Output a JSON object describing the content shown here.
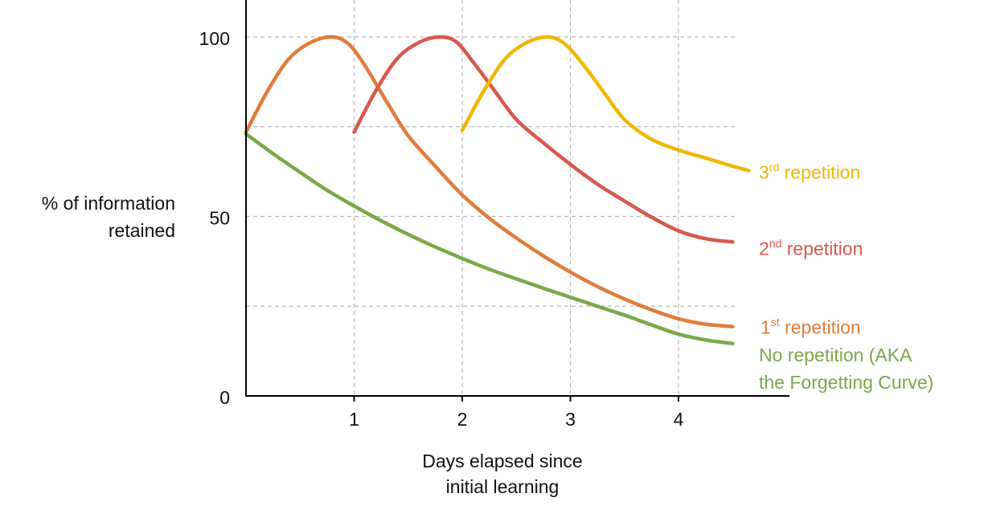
{
  "chart_data": {
    "type": "line",
    "xlabel": [
      "Days elapsed since",
      "initial learning"
    ],
    "ylabel": [
      "% of information",
      "retained"
    ],
    "xlim": [
      0,
      5
    ],
    "ylim": [
      0,
      100
    ],
    "x_ticks": [
      1,
      2,
      3,
      4
    ],
    "y_ticks": [
      0,
      50,
      100
    ],
    "y_gridlines": [
      25,
      50,
      75,
      100
    ],
    "x_gridlines": [
      1,
      2,
      3,
      4
    ],
    "grid": true,
    "series": [
      {
        "name": "No repetition (AKA the Forgetting Curve)",
        "label_lines": [
          "No repetition (AKA",
          "the Forgetting Curve)"
        ],
        "color": "#7aa84a",
        "points": [
          [
            0,
            73
          ],
          [
            0.25,
            67.5
          ],
          [
            0.5,
            62.3
          ],
          [
            0.75,
            57.3
          ],
          [
            1,
            52.9
          ],
          [
            1.25,
            48.8
          ],
          [
            1.5,
            45
          ],
          [
            1.75,
            41.5
          ],
          [
            2,
            38.3
          ],
          [
            2.25,
            35.3
          ],
          [
            2.5,
            32.6
          ],
          [
            2.75,
            30
          ],
          [
            3,
            27.5
          ],
          [
            3.25,
            25
          ],
          [
            3.5,
            22.5
          ],
          [
            3.75,
            19.8
          ],
          [
            4,
            17.2
          ],
          [
            4.25,
            15.6
          ],
          [
            4.5,
            14.6
          ]
        ]
      },
      {
        "name": "1st repetition",
        "label_main": "1",
        "label_sup": "st",
        "label_rest": " repetition",
        "color": "#e07c3a",
        "points": [
          [
            0,
            73.5
          ],
          [
            0.2,
            85
          ],
          [
            0.4,
            94
          ],
          [
            0.6,
            98.5
          ],
          [
            0.8,
            100
          ],
          [
            0.95,
            98
          ],
          [
            1.1,
            92
          ],
          [
            1.3,
            82
          ],
          [
            1.5,
            72.5
          ],
          [
            1.75,
            64
          ],
          [
            2,
            56
          ],
          [
            2.25,
            49.5
          ],
          [
            2.5,
            44
          ],
          [
            2.75,
            39
          ],
          [
            3,
            34.5
          ],
          [
            3.25,
            30.5
          ],
          [
            3.5,
            27
          ],
          [
            3.75,
            24
          ],
          [
            4,
            21.5
          ],
          [
            4.25,
            20
          ],
          [
            4.5,
            19.3
          ]
        ]
      },
      {
        "name": "2nd repetition",
        "label_main": "2",
        "label_sup": "nd",
        "label_rest": " repetition",
        "color": "#d9584d",
        "points": [
          [
            1,
            73.5
          ],
          [
            1.2,
            85
          ],
          [
            1.4,
            94
          ],
          [
            1.6,
            98.5
          ],
          [
            1.8,
            100
          ],
          [
            1.95,
            98.5
          ],
          [
            2.1,
            93
          ],
          [
            2.3,
            85
          ],
          [
            2.5,
            77
          ],
          [
            2.75,
            70.5
          ],
          [
            3,
            64.5
          ],
          [
            3.25,
            59
          ],
          [
            3.5,
            54.3
          ],
          [
            3.75,
            49.8
          ],
          [
            4,
            46
          ],
          [
            4.25,
            43.8
          ],
          [
            4.5,
            42.9
          ]
        ]
      },
      {
        "name": "3rd repetition",
        "label_main": "3",
        "label_sup": "rd",
        "label_rest": " repetition",
        "color": "#f2b705",
        "points": [
          [
            2,
            74
          ],
          [
            2.2,
            85
          ],
          [
            2.4,
            94
          ],
          [
            2.6,
            98.5
          ],
          [
            2.8,
            100
          ],
          [
            2.95,
            98
          ],
          [
            3.1,
            93
          ],
          [
            3.3,
            85
          ],
          [
            3.5,
            77
          ],
          [
            3.75,
            71.5
          ],
          [
            4,
            68.5
          ],
          [
            4.25,
            66.3
          ],
          [
            4.5,
            64
          ],
          [
            4.65,
            62.8
          ]
        ]
      }
    ]
  }
}
